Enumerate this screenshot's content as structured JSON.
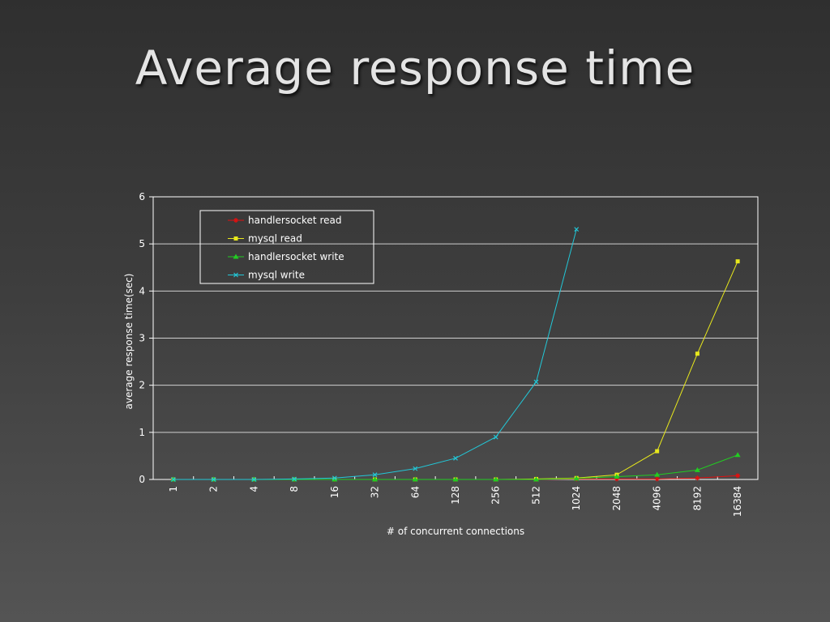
{
  "slide": {
    "title": "Average response time"
  },
  "colors": {
    "handlersocket_read": "#e01010",
    "mysql_read": "#e8e81c",
    "handlersocket_write": "#22cc22",
    "mysql_write": "#22c8d8"
  },
  "chart_data": {
    "type": "line",
    "title": "",
    "xlabel": "# of concurrent connections",
    "ylabel": "average response time(sec)",
    "ylim": [
      0,
      6
    ],
    "yticks": [
      "0",
      "1",
      "2",
      "3",
      "4",
      "5",
      "6"
    ],
    "grid": true,
    "legend_position": "top-left",
    "categories": [
      "1",
      "2",
      "4",
      "8",
      "16",
      "32",
      "64",
      "128",
      "256",
      "512",
      "1024",
      "2048",
      "4096",
      "8192",
      "16384"
    ],
    "series": [
      {
        "name": "handlersocket read",
        "color": "#e01010",
        "marker": "star",
        "values": [
          0,
          0,
          0,
          0,
          0,
          0,
          0,
          0,
          0,
          0,
          0.01,
          0.01,
          0.01,
          0.03,
          0.08
        ]
      },
      {
        "name": "mysql read",
        "color": "#e8e81c",
        "marker": "square",
        "values": [
          0,
          0,
          0,
          0,
          0,
          0,
          0,
          0,
          0,
          0.01,
          0.03,
          0.1,
          0.6,
          2.67,
          4.63
        ]
      },
      {
        "name": "handlersocket write",
        "color": "#22cc22",
        "marker": "triangle",
        "values": [
          0,
          0,
          0,
          0,
          0,
          0,
          0,
          0,
          0,
          0,
          0.02,
          0.06,
          0.1,
          0.2,
          0.52
        ]
      },
      {
        "name": "mysql write",
        "color": "#22c8d8",
        "marker": "x",
        "values": [
          0,
          0,
          0,
          0.01,
          0.03,
          0.1,
          0.23,
          0.45,
          0.9,
          2.07,
          5.31,
          null,
          null,
          null,
          null
        ]
      }
    ]
  }
}
